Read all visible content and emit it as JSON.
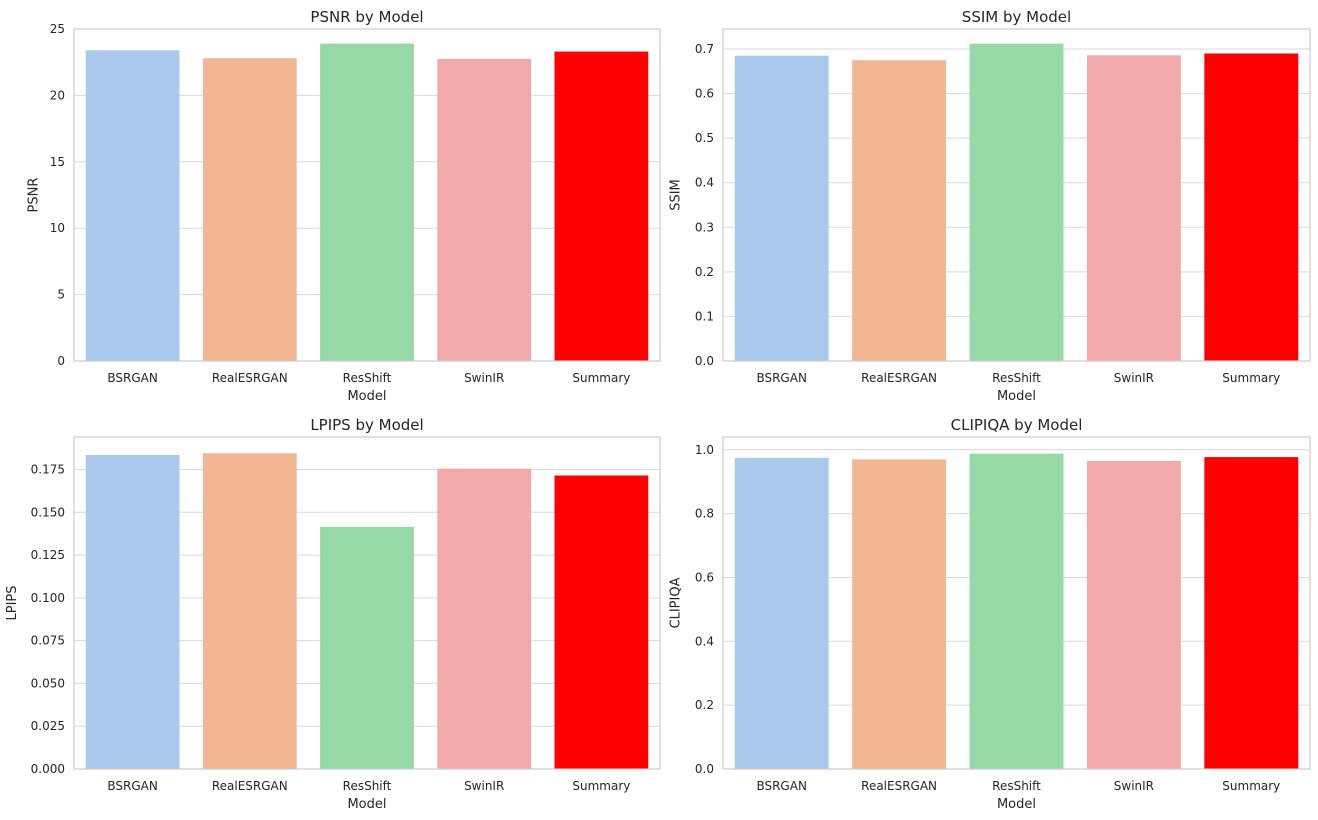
{
  "chart_data": [
    {
      "type": "bar",
      "title": "PSNR by Model",
      "xlabel": "Model",
      "ylabel": "PSNR",
      "categories": [
        "BSRGAN",
        "RealESRGAN",
        "ResShift",
        "SwinIR",
        "Summary"
      ],
      "values": [
        23.4,
        22.8,
        23.9,
        22.75,
        23.3
      ],
      "colors": [
        "#abc9ed",
        "#f1b792",
        "#97d9a6",
        "#f2a9a9",
        "#ff0000"
      ],
      "ylim": [
        0,
        25
      ],
      "yticks": [
        0,
        5,
        10,
        15,
        20,
        25
      ],
      "ytick_labels": [
        "0",
        "5",
        "10",
        "15",
        "20",
        "25"
      ],
      "grid": true
    },
    {
      "type": "bar",
      "title": "SSIM by Model",
      "xlabel": "Model",
      "ylabel": "SSIM",
      "categories": [
        "BSRGAN",
        "RealESRGAN",
        "ResShift",
        "SwinIR",
        "Summary"
      ],
      "values": [
        0.685,
        0.675,
        0.712,
        0.686,
        0.69
      ],
      "colors": [
        "#abc9ed",
        "#f1b792",
        "#97d9a6",
        "#f2a9a9",
        "#ff0000"
      ],
      "ylim": [
        0,
        0.745
      ],
      "yticks": [
        0,
        0.1,
        0.2,
        0.3,
        0.4,
        0.5,
        0.6,
        0.7
      ],
      "ytick_labels": [
        "0.0",
        "0.1",
        "0.2",
        "0.3",
        "0.4",
        "0.5",
        "0.6",
        "0.7"
      ],
      "grid": true
    },
    {
      "type": "bar",
      "title": "LPIPS by Model",
      "xlabel": "Model",
      "ylabel": "LPIPS",
      "categories": [
        "BSRGAN",
        "RealESRGAN",
        "ResShift",
        "SwinIR",
        "Summary"
      ],
      "values": [
        0.1835,
        0.1845,
        0.1415,
        0.1755,
        0.1715
      ],
      "colors": [
        "#abc9ed",
        "#f1b792",
        "#97d9a6",
        "#f2a9a9",
        "#ff0000"
      ],
      "ylim": [
        0,
        0.194
      ],
      "yticks": [
        0,
        0.025,
        0.05,
        0.075,
        0.1,
        0.125,
        0.15,
        0.175
      ],
      "ytick_labels": [
        "0.000",
        "0.025",
        "0.050",
        "0.075",
        "0.100",
        "0.125",
        "0.150",
        "0.175"
      ],
      "grid": true
    },
    {
      "type": "bar",
      "title": "CLIPIQA by Model",
      "xlabel": "Model",
      "ylabel": "CLIPIQA",
      "categories": [
        "BSRGAN",
        "RealESRGAN",
        "ResShift",
        "SwinIR",
        "Summary"
      ],
      "values": [
        0.975,
        0.97,
        0.988,
        0.965,
        0.977
      ],
      "colors": [
        "#abc9ed",
        "#f1b792",
        "#97d9a6",
        "#f2a9a9",
        "#ff0000"
      ],
      "ylim": [
        0,
        1.04
      ],
      "yticks": [
        0,
        0.2,
        0.4,
        0.6,
        0.8,
        1.0
      ],
      "ytick_labels": [
        "0.0",
        "0.2",
        "0.4",
        "0.6",
        "0.8",
        "1.0"
      ],
      "grid": true
    }
  ]
}
